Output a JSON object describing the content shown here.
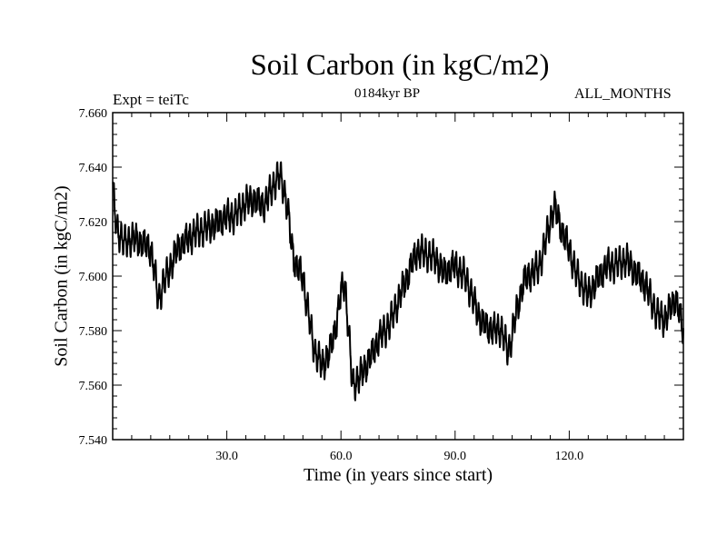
{
  "chart_data": {
    "type": "line",
    "title": "Soil Carbon (in kgC/m2)",
    "subtitle_left": "Expt = teiTc",
    "subtitle_center": "0184kyr BP",
    "subtitle_right": "ALL_MONTHS",
    "xlabel": "Time (in years since start)",
    "ylabel": "Soil Carbon (in kgC/m2)",
    "xlim": [
      0,
      150
    ],
    "ylim": [
      7.54,
      7.66
    ],
    "xticks": [
      30.0,
      60.0,
      90.0,
      120.0
    ],
    "xtick_labels": [
      "30.0",
      "60.0",
      "90.0",
      "120.0"
    ],
    "yticks": [
      7.54,
      7.56,
      7.58,
      7.6,
      7.62,
      7.64,
      7.66
    ],
    "ytick_labels": [
      "7.540",
      "7.560",
      "7.580",
      "7.600",
      "7.620",
      "7.640",
      "7.660"
    ],
    "trend": {
      "x": [
        0,
        1,
        3,
        5,
        8,
        10,
        11,
        12,
        13,
        15,
        17,
        20,
        22,
        25,
        27,
        30,
        32,
        35,
        37,
        40,
        42,
        44,
        45,
        46,
        47,
        48,
        50,
        51,
        53,
        55,
        57,
        59,
        60,
        61,
        62,
        63,
        65,
        68,
        70,
        73,
        75,
        78,
        80,
        83,
        85,
        87,
        90,
        93,
        95,
        97,
        100,
        102,
        104,
        106,
        108,
        110,
        112,
        114,
        116,
        118,
        120,
        122,
        125,
        127,
        130,
        132,
        135,
        137,
        140,
        143,
        145,
        148,
        150
      ],
      "y": [
        7.632,
        7.618,
        7.612,
        7.614,
        7.612,
        7.61,
        7.602,
        7.591,
        7.596,
        7.603,
        7.61,
        7.614,
        7.616,
        7.618,
        7.619,
        7.622,
        7.622,
        7.627,
        7.628,
        7.626,
        7.633,
        7.637,
        7.632,
        7.624,
        7.612,
        7.604,
        7.6,
        7.59,
        7.573,
        7.567,
        7.572,
        7.584,
        7.594,
        7.598,
        7.58,
        7.56,
        7.563,
        7.571,
        7.577,
        7.583,
        7.591,
        7.602,
        7.609,
        7.608,
        7.606,
        7.601,
        7.604,
        7.599,
        7.59,
        7.583,
        7.58,
        7.581,
        7.572,
        7.586,
        7.598,
        7.601,
        7.603,
        7.614,
        7.626,
        7.617,
        7.61,
        7.6,
        7.593,
        7.598,
        7.604,
        7.604,
        7.606,
        7.602,
        7.597,
        7.586,
        7.584,
        7.592,
        7.58
      ]
    },
    "variability": {
      "amplitude": 0.0045,
      "cycles_per_year": 1
    }
  }
}
